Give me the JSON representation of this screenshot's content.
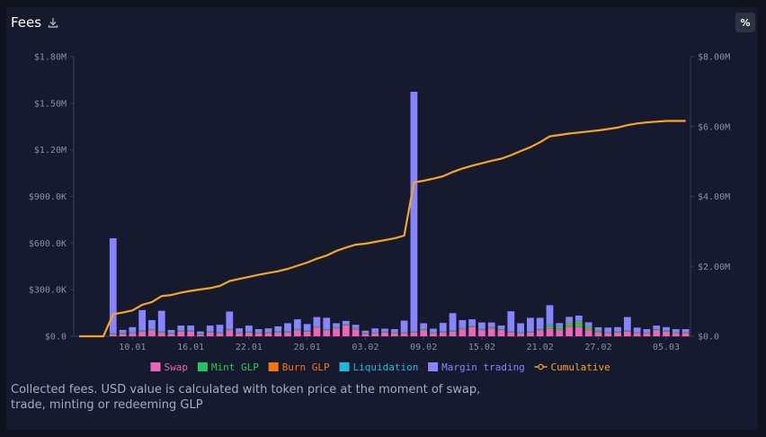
{
  "header": {
    "title": "Fees",
    "percent_button": "%"
  },
  "icons": {
    "download": "download-icon"
  },
  "caption": "Collected fees. USD value is calculated with token price at the moment of swap, trade, minting or redeeming GLP",
  "colors": {
    "background": "#161a2e",
    "swap": "#ee64b8",
    "mint_glp": "#22c761",
    "burn_glp": "#f97316",
    "liquidation": "#22b8dd",
    "margin_trading": "#8884ff",
    "cumulative": "#f5a524",
    "axis": "#8a8fa6"
  },
  "chart_data": {
    "type": "bar",
    "stacked": true,
    "x_ticks": [
      "10.01",
      "16.01",
      "22.01",
      "28.01",
      "03.02",
      "09.02",
      "15.02",
      "21.02",
      "27.02",
      "05.03"
    ],
    "y_left": {
      "ticks": [
        "$0.0",
        "$300.0K",
        "$600.0K",
        "$900.0K",
        "$1.20M",
        "$1.50M",
        "$1.80M"
      ],
      "ylim": [
        0,
        1800000
      ]
    },
    "y_right": {
      "ticks": [
        "$0.0",
        "$2.00M",
        "$4.00M",
        "$6.00M",
        "$8.00M"
      ],
      "ylim": [
        0,
        8000000
      ]
    },
    "legend_position": "bottom",
    "grid": false,
    "series": [
      {
        "name": "Swap",
        "color": "#ee64b8",
        "values": [
          0,
          0,
          0,
          12000,
          15000,
          20000,
          30000,
          40000,
          25000,
          15000,
          30000,
          30000,
          10000,
          25000,
          20000,
          40000,
          20000,
          25000,
          20000,
          20000,
          25000,
          25000,
          40000,
          30000,
          55000,
          40000,
          50000,
          70000,
          45000,
          15000,
          20000,
          25000,
          20000,
          20000,
          25000,
          40000,
          20000,
          25000,
          30000,
          45000,
          60000,
          40000,
          50000,
          40000,
          25000,
          20000,
          25000,
          40000,
          50000,
          40000,
          60000,
          60000,
          40000,
          25000,
          20000,
          25000,
          30000,
          20000,
          20000,
          40000,
          30000,
          20000,
          20000
        ]
      },
      {
        "name": "Mint GLP",
        "color": "#22c761",
        "values": [
          0,
          0,
          0,
          2000,
          2000,
          2000,
          2000,
          2000,
          2000,
          2000,
          2000,
          2000,
          2000,
          2000,
          2000,
          2000,
          2000,
          2000,
          2000,
          2000,
          2000,
          2000,
          2000,
          2000,
          2000,
          2000,
          2000,
          2000,
          2000,
          2000,
          2000,
          2000,
          2000,
          2000,
          2000,
          2000,
          2000,
          2000,
          2000,
          2000,
          2000,
          2000,
          2000,
          2000,
          2000,
          2000,
          2000,
          2000,
          15000,
          10000,
          15000,
          25000,
          12000,
          8000,
          2000,
          2000,
          2000,
          2000,
          2000,
          2000,
          2000,
          2000,
          2000
        ]
      },
      {
        "name": "Burn GLP",
        "color": "#f97316",
        "values": [
          0,
          0,
          0,
          2000,
          2000,
          2000,
          2000,
          2000,
          2000,
          2000,
          2000,
          2000,
          2000,
          2000,
          2000,
          2000,
          2000,
          2000,
          2000,
          2000,
          2000,
          2000,
          2000,
          2000,
          2000,
          2000,
          2000,
          2000,
          2000,
          2000,
          2000,
          2000,
          2000,
          2000,
          2000,
          2000,
          2000,
          2000,
          2000,
          2000,
          2000,
          2000,
          2000,
          2000,
          2000,
          2000,
          2000,
          2000,
          5000,
          5000,
          10000,
          8000,
          8000,
          5000,
          2000,
          2000,
          2000,
          2000,
          2000,
          2000,
          2000,
          2000,
          2000
        ]
      },
      {
        "name": "Liquidation",
        "color": "#22b8dd",
        "values": [
          0,
          0,
          0,
          5000,
          2000,
          5000,
          5000,
          5000,
          5000,
          2000,
          5000,
          5000,
          2000,
          5000,
          5000,
          5000,
          2000,
          5000,
          2000,
          2000,
          5000,
          5000,
          5000,
          5000,
          5000,
          5000,
          5000,
          5000,
          5000,
          2000,
          2000,
          5000,
          2000,
          2000,
          5000,
          5000,
          5000,
          2000,
          5000,
          5000,
          5000,
          5000,
          5000,
          5000,
          2000,
          5000,
          5000,
          5000,
          10000,
          10000,
          10000,
          10000,
          10000,
          5000,
          2000,
          5000,
          5000,
          2000,
          2000,
          5000,
          5000,
          2000,
          2000
        ]
      },
      {
        "name": "Margin trading",
        "color": "#8884ff",
        "values": [
          0,
          0,
          0,
          610000,
          20000,
          30000,
          130000,
          55000,
          130000,
          20000,
          30000,
          30000,
          15000,
          35000,
          45000,
          110000,
          25000,
          35000,
          20000,
          25000,
          30000,
          50000,
          60000,
          40000,
          60000,
          70000,
          25000,
          20000,
          20000,
          15000,
          25000,
          15000,
          20000,
          75000,
          1540000,
          35000,
          20000,
          55000,
          110000,
          50000,
          40000,
          40000,
          30000,
          20000,
          130000,
          55000,
          85000,
          70000,
          120000,
          20000,
          30000,
          30000,
          20000,
          15000,
          30000,
          25000,
          85000,
          30000,
          20000,
          20000,
          20000,
          20000,
          20000
        ]
      },
      {
        "name": "Cumulative",
        "color": "#f5a524",
        "values": [
          0,
          0,
          0,
          630000,
          680000,
          740000,
          900000,
          980000,
          1150000,
          1180000,
          1250000,
          1300000,
          1340000,
          1380000,
          1440000,
          1580000,
          1640000,
          1700000,
          1760000,
          1810000,
          1860000,
          1930000,
          2020000,
          2110000,
          2220000,
          2310000,
          2440000,
          2540000,
          2620000,
          2650000,
          2700000,
          2750000,
          2800000,
          2880000,
          4400000,
          4450000,
          4510000,
          4580000,
          4700000,
          4800000,
          4880000,
          4950000,
          5020000,
          5080000,
          5180000,
          5300000,
          5410000,
          5550000,
          5720000,
          5760000,
          5800000,
          5830000,
          5860000,
          5890000,
          5930000,
          5970000,
          6040000,
          6090000,
          6120000,
          6140000,
          6160000,
          6160000,
          6160000
        ]
      }
    ]
  }
}
